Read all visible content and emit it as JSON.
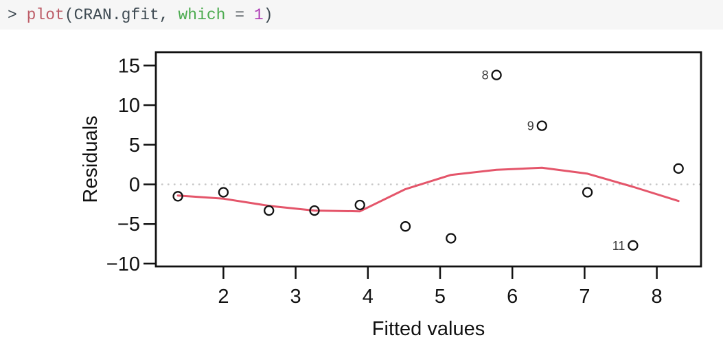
{
  "console": {
    "command_full": "> plot(CRAN.gfit, which = 1)",
    "tokens": [
      {
        "text": "> ",
        "color": "#3e4a52"
      },
      {
        "text": "plot",
        "color": "#bd5d68"
      },
      {
        "text": "(CRAN.gfit, ",
        "color": "#3e4a52"
      },
      {
        "text": "which",
        "color": "#4cab50"
      },
      {
        "text": " = ",
        "color": "#52595e"
      },
      {
        "text": "1",
        "color": "#ae3bb5"
      },
      {
        "text": ")",
        "color": "#3e4a52"
      }
    ]
  },
  "chart_data": {
    "type": "scatter",
    "title": "",
    "xlabel": "Fitted values",
    "ylabel": "Residuals",
    "xlim": [
      1.05,
      8.6
    ],
    "ylim": [
      -10.4,
      16.7
    ],
    "grid": false,
    "x_ticks": [
      {
        "v": 2,
        "label": "2"
      },
      {
        "v": 3,
        "label": "3"
      },
      {
        "v": 4,
        "label": "4"
      },
      {
        "v": 5,
        "label": "5"
      },
      {
        "v": 6,
        "label": "6"
      },
      {
        "v": 7,
        "label": "7"
      },
      {
        "v": 8,
        "label": "8"
      }
    ],
    "y_ticks": [
      {
        "v": 15,
        "label": "15"
      },
      {
        "v": 10,
        "label": "10"
      },
      {
        "v": 5,
        "label": "5"
      },
      {
        "v": 0,
        "label": "0"
      },
      {
        "v": -5,
        "label": "−5"
      },
      {
        "v": -10,
        "label": "−10"
      }
    ],
    "points": [
      {
        "x": 1.37,
        "y": -1.5
      },
      {
        "x": 2.0,
        "y": -1.0
      },
      {
        "x": 2.63,
        "y": -3.3
      },
      {
        "x": 3.26,
        "y": -3.3
      },
      {
        "x": 3.89,
        "y": -2.6
      },
      {
        "x": 4.52,
        "y": -5.3
      },
      {
        "x": 5.15,
        "y": -6.8
      },
      {
        "x": 5.78,
        "y": 13.8,
        "label": "8"
      },
      {
        "x": 6.41,
        "y": 7.4,
        "label": "9"
      },
      {
        "x": 7.04,
        "y": -1.0
      },
      {
        "x": 7.67,
        "y": -7.7,
        "label": "11"
      },
      {
        "x": 8.3,
        "y": 2.0
      }
    ],
    "smooth_line": [
      [
        1.37,
        -1.4
      ],
      [
        2.0,
        -1.8
      ],
      [
        2.63,
        -2.7
      ],
      [
        3.26,
        -3.3
      ],
      [
        3.89,
        -3.4
      ],
      [
        4.52,
        -0.6
      ],
      [
        5.15,
        1.2
      ],
      [
        5.78,
        1.85
      ],
      [
        6.41,
        2.1
      ],
      [
        7.04,
        1.35
      ],
      [
        7.67,
        -0.3
      ],
      [
        8.3,
        -2.1
      ]
    ],
    "zero_line_y": 0,
    "colors": {
      "smooth_line": "#e4556a",
      "zero_line": "#c6c6c6",
      "points": "#111111",
      "axis": "#111111",
      "labels": "#3a3a3a"
    }
  }
}
